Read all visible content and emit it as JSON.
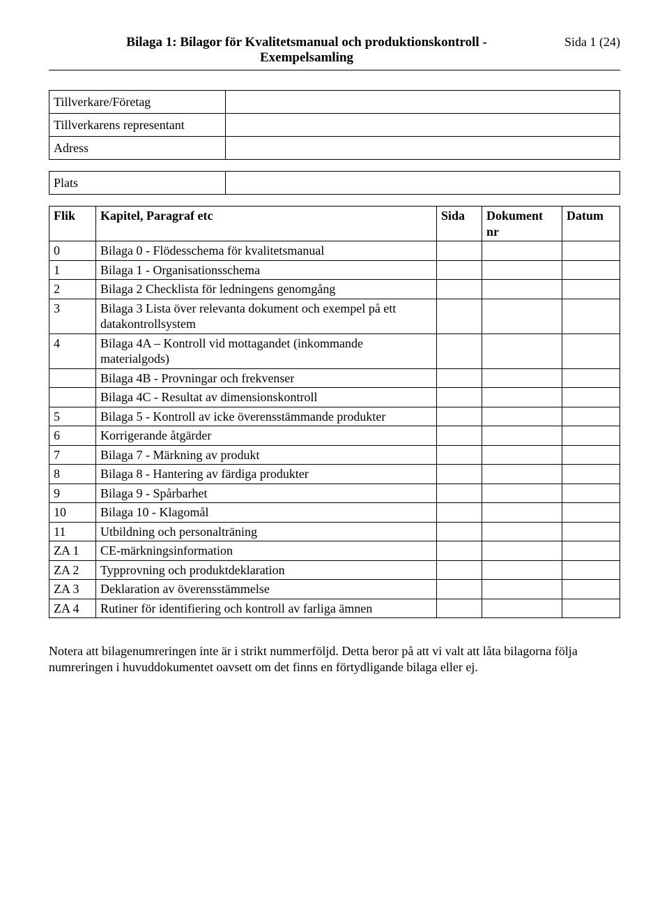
{
  "header": {
    "title_line1": "Bilaga 1: Bilagor för Kvalitetsmanual och produktionskontroll -",
    "title_line2": "Exempelsamling",
    "page_label": "Sida 1 (24)"
  },
  "info": {
    "rows": [
      "Tillverkare/Företag",
      "Tillverkarens representant",
      "Adress"
    ],
    "plats": "Plats"
  },
  "table": {
    "headers": {
      "flik": "Flik",
      "kapitel": "Kapitel, Paragraf etc",
      "sida": "Sida",
      "dokument1": "Dokument",
      "dokument2": "nr",
      "datum": "Datum"
    },
    "rows": [
      {
        "flik": "0",
        "text": "Bilaga 0 - Flödesschema för kvalitetsmanual"
      },
      {
        "flik": "1",
        "text": "Bilaga 1 - Organisationsschema"
      },
      {
        "flik": "2",
        "text": "Bilaga 2 Checklista för ledningens genomgång"
      },
      {
        "flik": "3",
        "text": "Bilaga 3 Lista över relevanta dokument och exempel på ett datakontrollsystem"
      },
      {
        "flik": "4",
        "text": "Bilaga 4A – Kontroll vid mottagandet (inkommande materialgods)"
      },
      {
        "flik": "",
        "text": "Bilaga 4B - Provningar och frekvenser"
      },
      {
        "flik": "",
        "text": "Bilaga 4C - Resultat av dimensionskontroll"
      },
      {
        "flik": "5",
        "text": "Bilaga 5 - Kontroll av icke överensstämmande produkter"
      },
      {
        "flik": "6",
        "text": "Korrigerande åtgärder"
      },
      {
        "flik": "7",
        "text": "Bilaga 7 - Märkning av produkt"
      },
      {
        "flik": "8",
        "text": "Bilaga 8 - Hantering av färdiga produkter"
      },
      {
        "flik": "9",
        "text": "Bilaga 9 - Spårbarhet"
      },
      {
        "flik": "10",
        "text": "Bilaga 10 - Klagomål"
      },
      {
        "flik": "11",
        "text": "Utbildning och personalträning"
      },
      {
        "flik": "ZA 1",
        "text": "CE-märkningsinformation"
      },
      {
        "flik": "ZA 2",
        "text": "Typprovning och produktdeklaration"
      },
      {
        "flik": "ZA 3",
        "text": "Deklaration av överensstämmelse"
      },
      {
        "flik": "ZA 4",
        "text": "Rutiner för identifiering och kontroll av farliga ämnen"
      }
    ]
  },
  "footnote": "Notera att bilagenumreringen inte är i strikt nummerföljd. Detta beror på att vi valt att låta bilagorna följa numreringen i huvuddokumentet oavsett om det finns en förtydligande bilaga eller ej."
}
